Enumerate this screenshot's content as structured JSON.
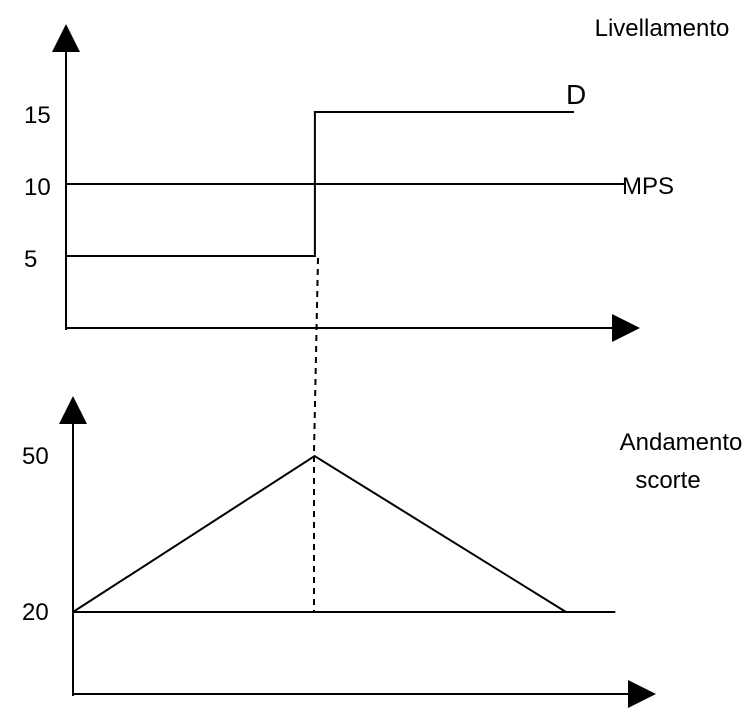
{
  "colors": {
    "ink": "#000000",
    "background": "#ffffff"
  },
  "chart_data": [
    {
      "type": "line",
      "title": "Livellamento",
      "xlabel": "",
      "ylabel": "",
      "y_ticks": [
        "5",
        "10",
        "15"
      ],
      "ylim": [
        0,
        20
      ],
      "grid": false,
      "series": [
        {
          "name": "D",
          "style": "step",
          "points": [
            [
              0,
              5
            ],
            [
              0.49,
              5
            ],
            [
              0.49,
              15
            ],
            [
              1,
              15
            ]
          ]
        },
        {
          "name": "MPS",
          "points": [
            [
              0,
              10
            ],
            [
              1.1,
              10
            ]
          ]
        }
      ]
    },
    {
      "type": "line",
      "title": "Andamento scorte",
      "title_lines": [
        "Andamento",
        "scorte"
      ],
      "xlabel": "",
      "ylabel": "",
      "y_ticks": [
        "20",
        "50"
      ],
      "ylim": [
        10,
        62
      ],
      "grid": false,
      "series": [
        {
          "points": [
            [
              0,
              20
            ],
            [
              0.49,
              50
            ],
            [
              1,
              20
            ]
          ]
        },
        {
          "points": [
            [
              0,
              20
            ],
            [
              1.1,
              20
            ]
          ]
        }
      ]
    }
  ]
}
